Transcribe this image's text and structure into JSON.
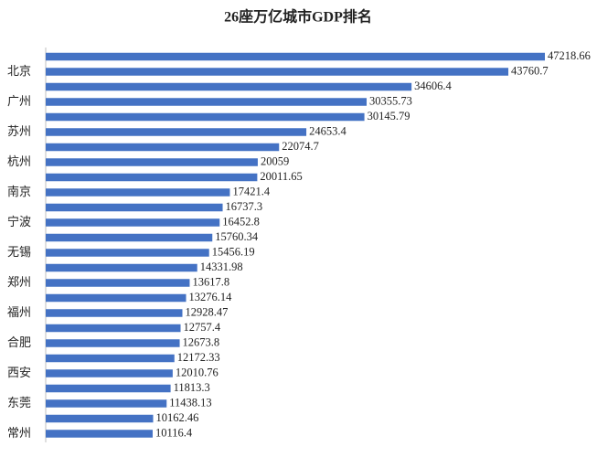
{
  "chart_data": {
    "type": "barh",
    "title": "26座万亿城市GDP排名",
    "categories": [
      null,
      "北京",
      null,
      "广州",
      null,
      "苏州",
      null,
      "杭州",
      null,
      "南京",
      null,
      "宁波",
      null,
      "无锡",
      null,
      "郑州",
      null,
      "福州",
      null,
      "合肥",
      null,
      "西安",
      null,
      "东莞",
      null,
      "常州"
    ],
    "values": [
      47218.66,
      43760.7,
      34606.4,
      30355.73,
      30145.79,
      24653.4,
      22074.7,
      20059,
      20011.65,
      17421.4,
      16737.3,
      16452.8,
      15760.34,
      15456.19,
      14331.98,
      13617.8,
      13276.14,
      12928.47,
      12757.4,
      12673.8,
      12172.33,
      12010.76,
      11813.3,
      11438.13,
      10162.46,
      10116.4
    ],
    "color": "#4472c4"
  }
}
